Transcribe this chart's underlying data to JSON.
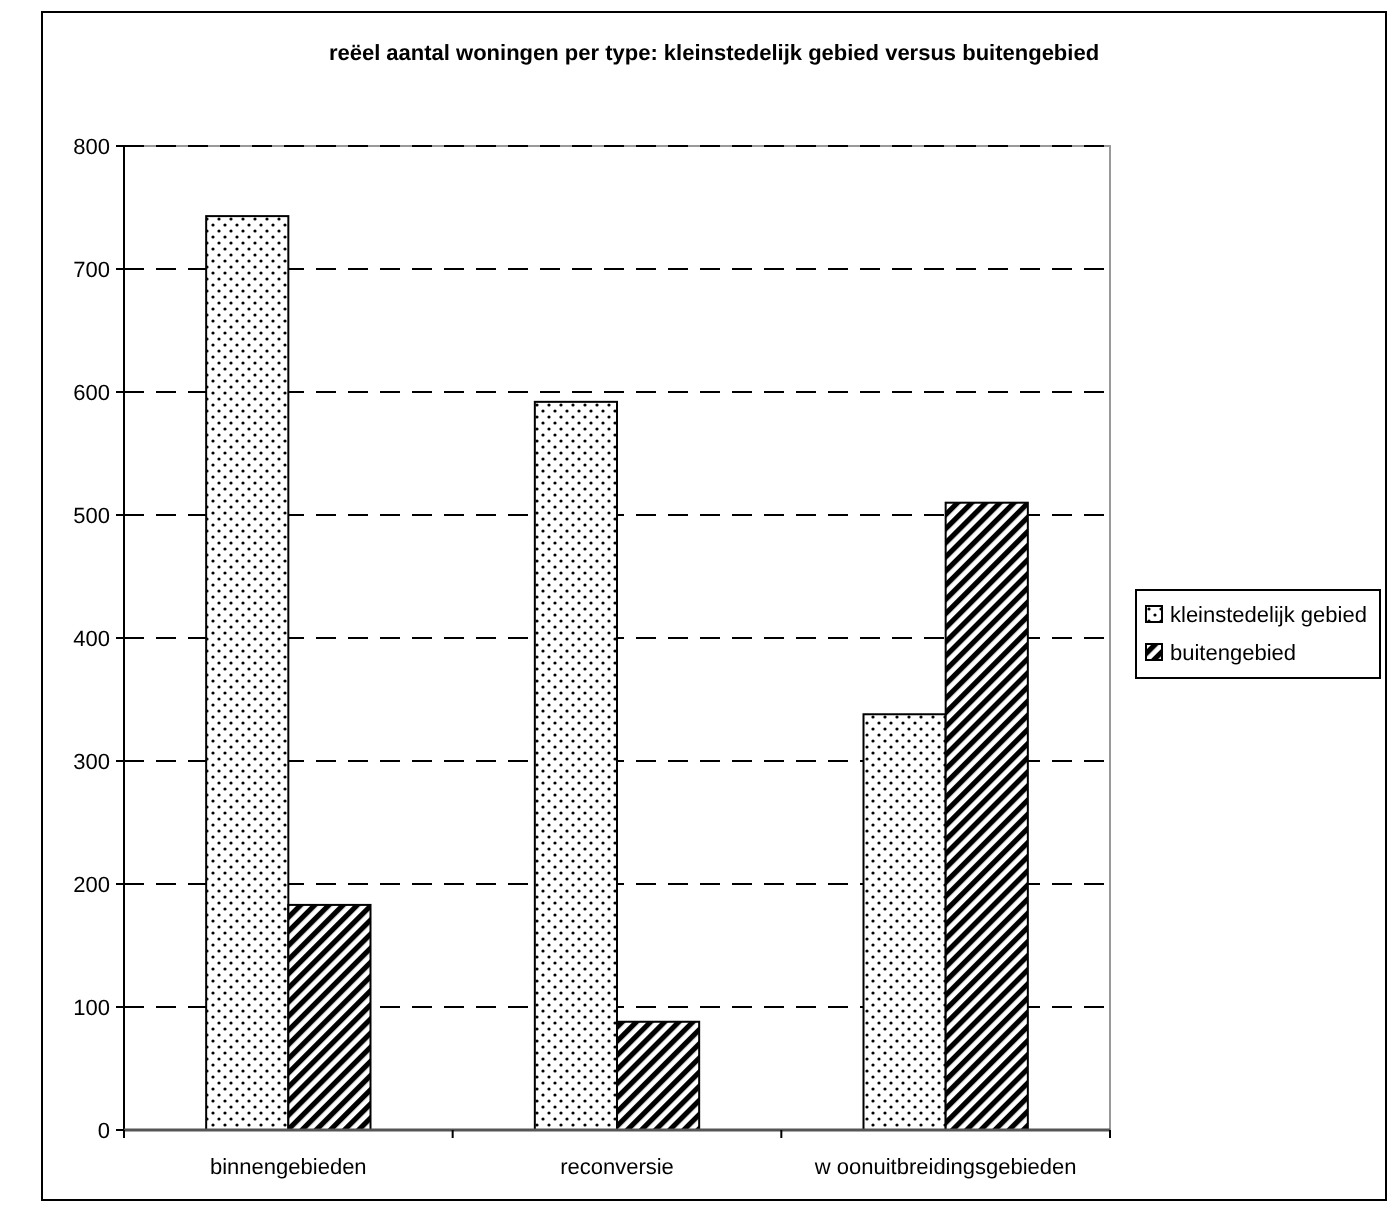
{
  "chart_data": {
    "type": "bar",
    "title": "reëel aantal woningen per type: kleinstedelijk gebied versus buitengebied",
    "categories": [
      "binnengebieden",
      "reconversie",
      "w oonuitbreidingsgebieden"
    ],
    "series": [
      {
        "name": "kleinstedelijk gebied",
        "color": "#000000",
        "values": [
          743,
          592,
          338
        ]
      },
      {
        "name": "buitengebied",
        "color": "#000000",
        "values": [
          183,
          88,
          510
        ]
      }
    ],
    "ylim": [
      0,
      800
    ],
    "yticks": [
      0,
      100,
      200,
      300,
      400,
      500,
      600,
      700,
      800
    ],
    "grid": "y",
    "legend": "right"
  }
}
